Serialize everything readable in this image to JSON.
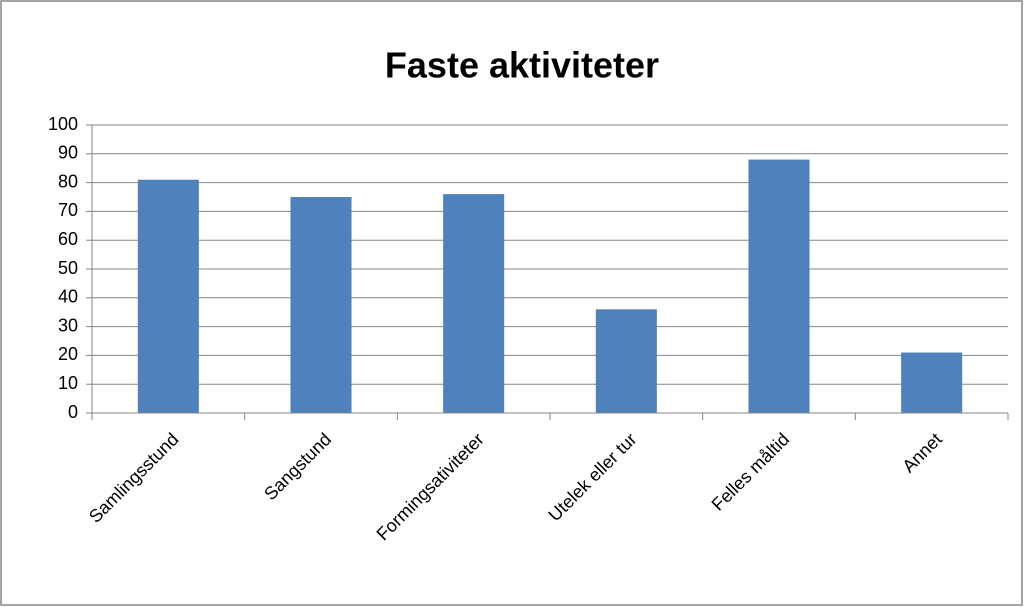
{
  "chart_data": {
    "type": "bar",
    "title": "Faste aktiviteter",
    "categories": [
      "Samlingsstund",
      "Sangstund",
      "Formingsativiteter",
      "Utelek eller tur",
      "Felles måltid",
      "Annet"
    ],
    "values": [
      81,
      75,
      76,
      36,
      88,
      21
    ],
    "color": "#4f81bd",
    "ylim": [
      0,
      100
    ],
    "yticks": [
      0,
      10,
      20,
      30,
      40,
      50,
      60,
      70,
      80,
      90,
      100
    ],
    "grid": true
  }
}
